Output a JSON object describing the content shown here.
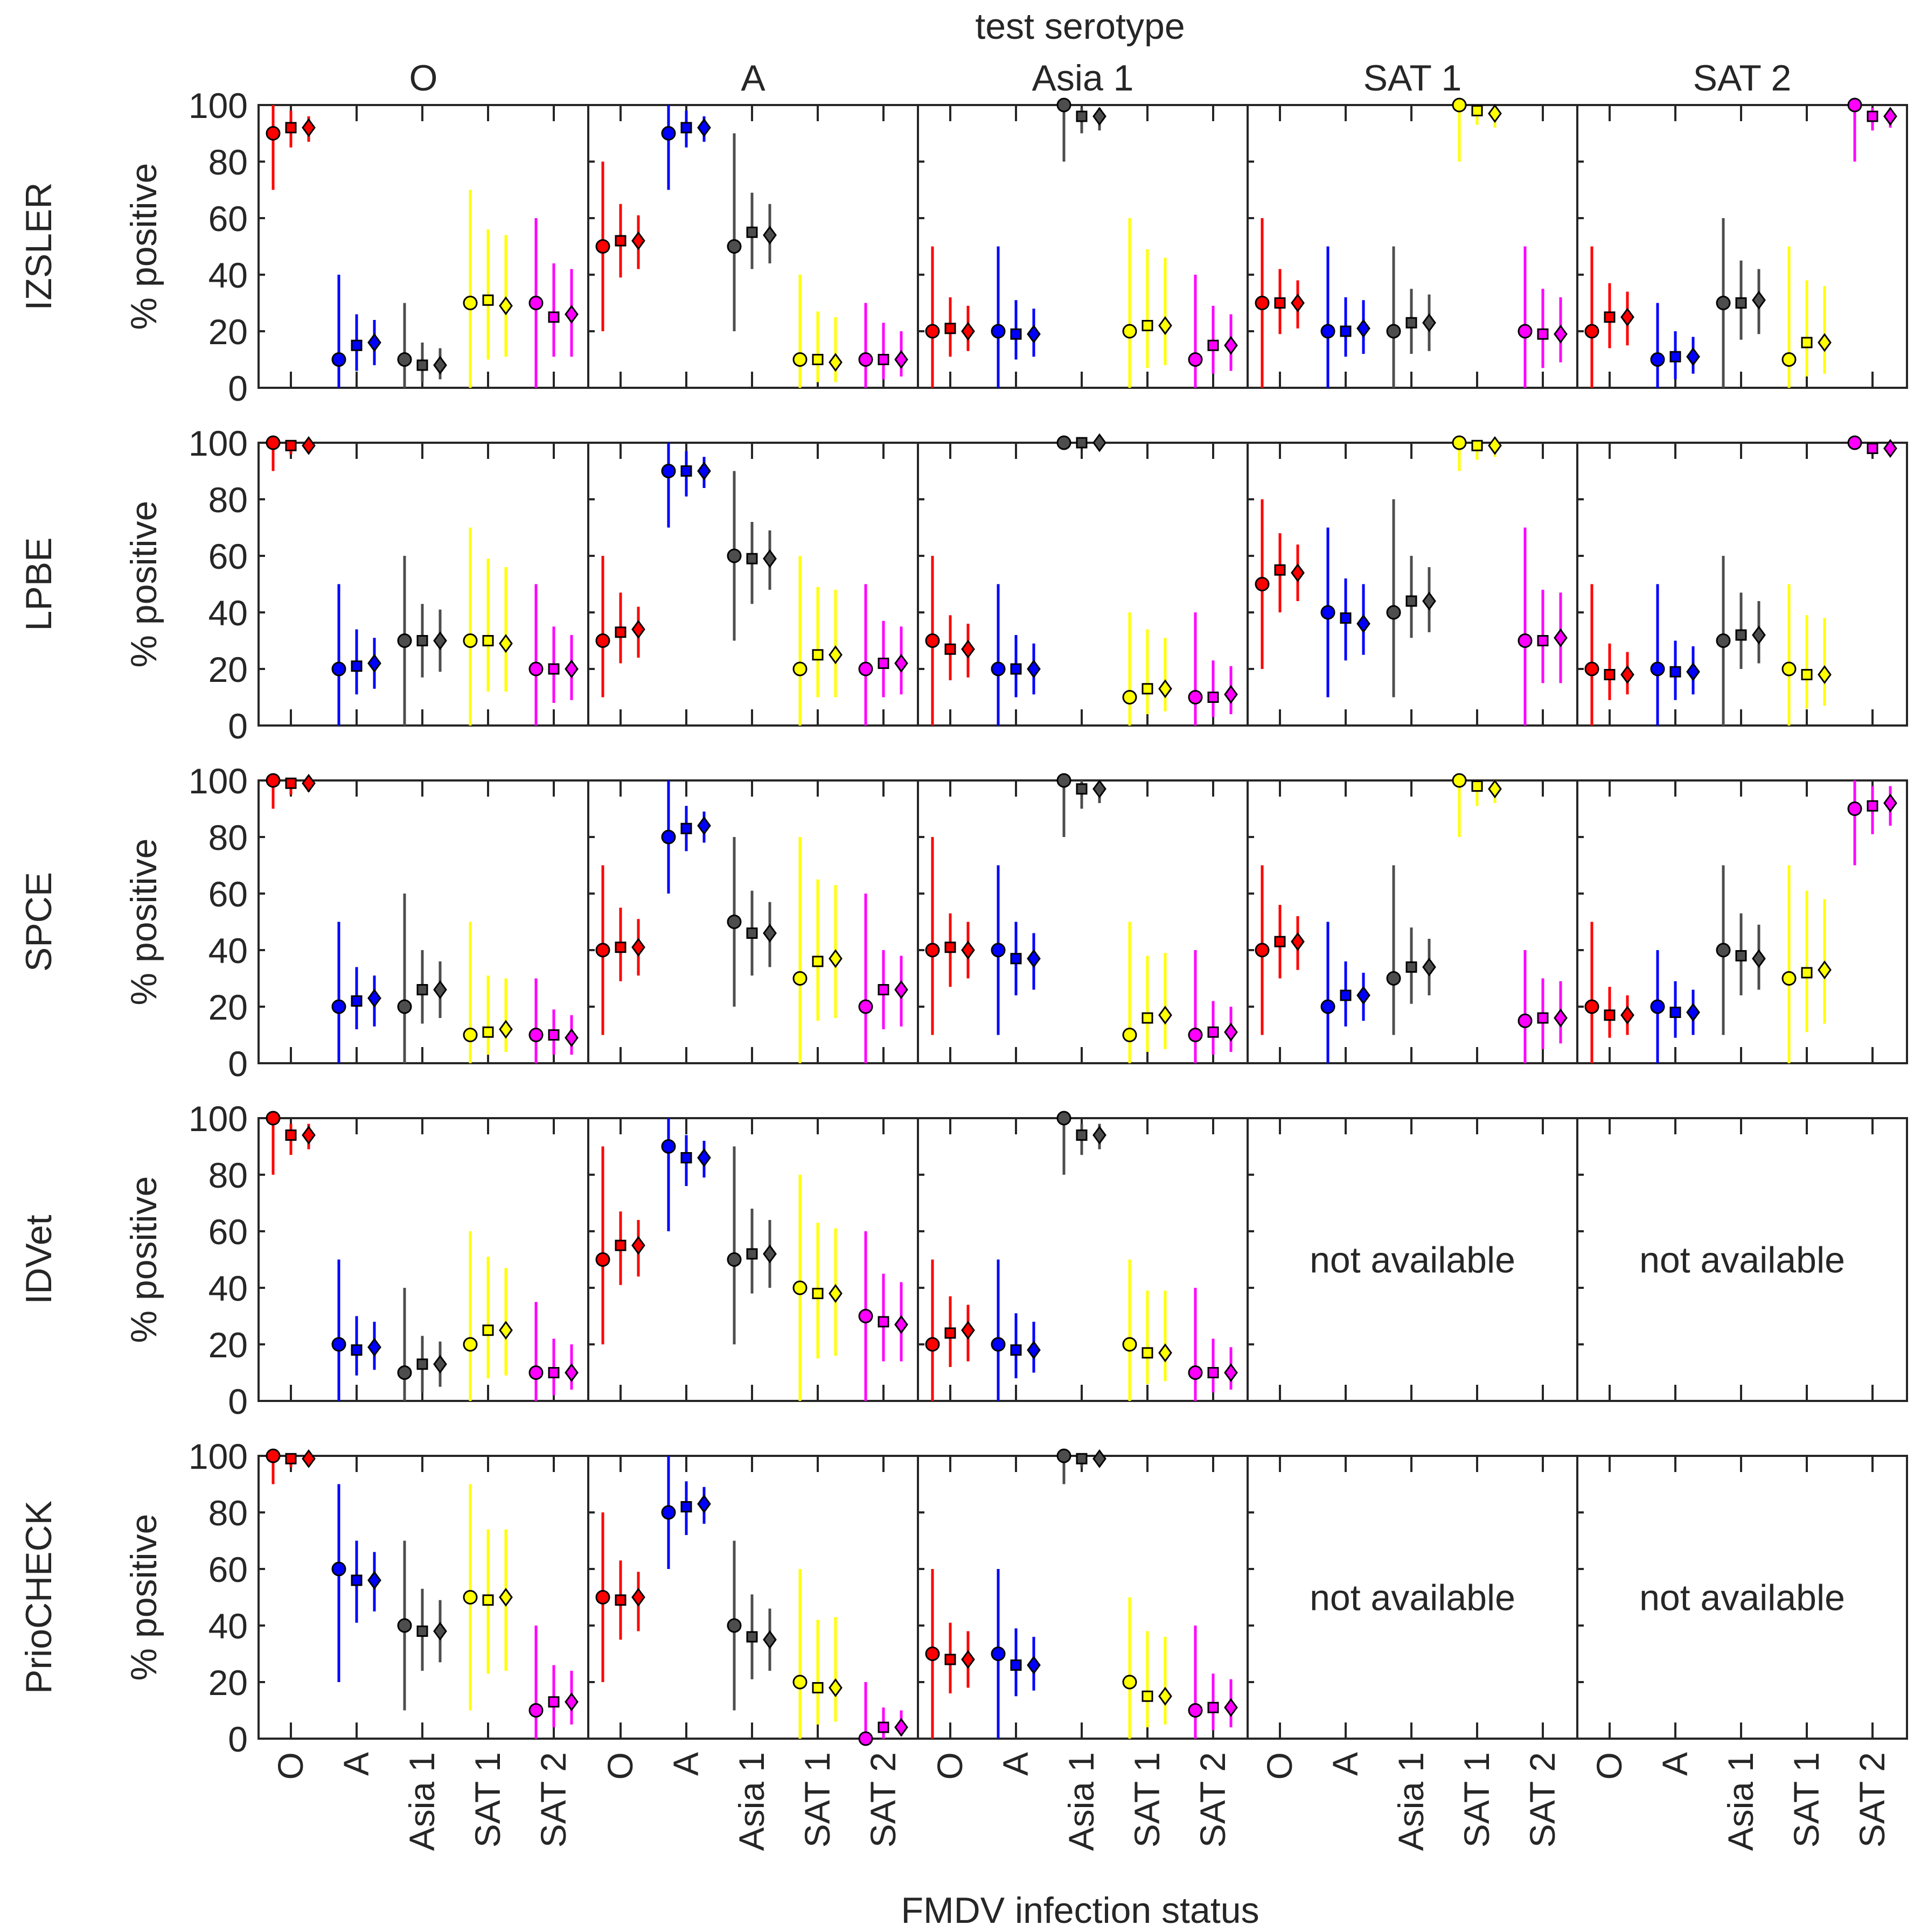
{
  "chart_data": {
    "type": "scatter",
    "title": "test serotype",
    "xlabel": "FMDV infection status",
    "ylabel": "% positive",
    "ylim": [
      0,
      100
    ],
    "yticks": [
      0,
      20,
      40,
      60,
      80,
      100
    ],
    "categories": [
      "O",
      "A",
      "Asia 1",
      "SAT 1",
      "SAT 2"
    ],
    "column_titles": [
      "O",
      "A",
      "Asia 1",
      "SAT 1",
      "SAT 2"
    ],
    "row_titles": [
      "IZSLER",
      "LPBE",
      "SPCE",
      "IDVet",
      "PrioCHECK"
    ],
    "not_available_text": "not available",
    "colors": {
      "O": "#ff0000",
      "A": "#0000ff",
      "Asia 1": "#4d4d4d",
      "SAT 1": "#ffff00",
      "SAT 2": "#ff00ff"
    },
    "markers": [
      "circle",
      "square",
      "diamond"
    ],
    "panels": [
      [
        [
          [
            90,
            70,
            100,
            92,
            85,
            98,
            92,
            87,
            96
          ],
          [
            10,
            0,
            40,
            15,
            6,
            26,
            16,
            8,
            24
          ],
          [
            10,
            0,
            30,
            8,
            2,
            16,
            8,
            3,
            14
          ],
          [
            30,
            0,
            70,
            31,
            10,
            56,
            29,
            11,
            54
          ],
          [
            30,
            0,
            60,
            25,
            11,
            44,
            26,
            11,
            42
          ]
        ],
        [
          [
            50,
            20,
            80,
            52,
            39,
            65,
            52,
            42,
            61
          ],
          [
            90,
            70,
            100,
            92,
            85,
            98,
            92,
            87,
            96
          ],
          [
            50,
            20,
            90,
            55,
            42,
            69,
            54,
            44,
            65
          ],
          [
            10,
            0,
            40,
            10,
            2,
            27,
            9,
            2,
            25
          ],
          [
            10,
            0,
            30,
            10,
            3,
            23,
            10,
            4,
            20
          ]
        ],
        [
          [
            20,
            0,
            50,
            21,
            11,
            32,
            20,
            13,
            29
          ],
          [
            20,
            0,
            50,
            19,
            10,
            31,
            19,
            11,
            28
          ],
          [
            100,
            80,
            100,
            96,
            90,
            99,
            96,
            91,
            99
          ],
          [
            20,
            0,
            60,
            22,
            7,
            49,
            22,
            8,
            46
          ],
          [
            10,
            0,
            40,
            15,
            5,
            29,
            15,
            6,
            26
          ]
        ],
        [
          [
            30,
            0,
            60,
            30,
            19,
            42,
            30,
            21,
            38
          ],
          [
            20,
            0,
            50,
            20,
            11,
            32,
            21,
            12,
            31
          ],
          [
            20,
            0,
            50,
            23,
            12,
            35,
            23,
            13,
            33
          ],
          [
            100,
            80,
            100,
            98,
            93,
            100,
            97,
            92,
            99
          ],
          [
            20,
            0,
            50,
            19,
            7,
            35,
            19,
            9,
            32
          ]
        ],
        [
          [
            20,
            0,
            50,
            25,
            14,
            37,
            25,
            15,
            34
          ],
          [
            10,
            0,
            30,
            11,
            3,
            20,
            11,
            5,
            18
          ],
          [
            30,
            0,
            60,
            30,
            17,
            45,
            31,
            19,
            42
          ],
          [
            10,
            0,
            50,
            16,
            4,
            38,
            16,
            5,
            36
          ],
          [
            100,
            80,
            100,
            96,
            91,
            99,
            96,
            92,
            99
          ]
        ]
      ],
      [
        [
          [
            100,
            90,
            100,
            99,
            96,
            100,
            99,
            97,
            100
          ],
          [
            20,
            0,
            50,
            21,
            11,
            34,
            22,
            13,
            31
          ],
          [
            30,
            0,
            60,
            30,
            17,
            43,
            30,
            19,
            41
          ],
          [
            30,
            0,
            70,
            30,
            12,
            59,
            29,
            12,
            56
          ],
          [
            20,
            0,
            50,
            20,
            8,
            35,
            20,
            9,
            32
          ]
        ],
        [
          [
            30,
            10,
            60,
            33,
            22,
            47,
            34,
            24,
            42
          ],
          [
            90,
            70,
            100,
            90,
            81,
            97,
            90,
            84,
            95
          ],
          [
            60,
            30,
            90,
            59,
            43,
            72,
            59,
            48,
            69
          ],
          [
            20,
            0,
            60,
            25,
            10,
            49,
            25,
            10,
            48
          ],
          [
            20,
            0,
            50,
            22,
            10,
            37,
            22,
            11,
            35
          ]
        ],
        [
          [
            30,
            0,
            60,
            27,
            16,
            39,
            27,
            17,
            36
          ],
          [
            20,
            0,
            50,
            20,
            10,
            32,
            20,
            11,
            29
          ],
          [
            100,
            100,
            100,
            100,
            98,
            100,
            100,
            99,
            100
          ],
          [
            10,
            0,
            40,
            13,
            4,
            34,
            13,
            5,
            31
          ],
          [
            10,
            0,
            40,
            10,
            3,
            23,
            11,
            4,
            21
          ]
        ],
        [
          [
            50,
            20,
            80,
            55,
            40,
            68,
            54,
            44,
            64
          ],
          [
            40,
            10,
            70,
            38,
            23,
            52,
            36,
            25,
            50
          ],
          [
            40,
            10,
            80,
            44,
            31,
            60,
            44,
            33,
            56
          ],
          [
            100,
            90,
            100,
            99,
            94,
            100,
            99,
            95,
            100
          ],
          [
            30,
            0,
            70,
            30,
            15,
            48,
            31,
            15,
            47
          ]
        ],
        [
          [
            20,
            0,
            50,
            18,
            9,
            29,
            18,
            11,
            26
          ],
          [
            20,
            0,
            50,
            19,
            9,
            30,
            19,
            11,
            28
          ],
          [
            30,
            0,
            60,
            32,
            20,
            47,
            32,
            22,
            44
          ],
          [
            20,
            0,
            50,
            18,
            6,
            39,
            18,
            7,
            38
          ],
          [
            100,
            100,
            100,
            98,
            96,
            100,
            98,
            96,
            100
          ]
        ]
      ],
      [
        [
          [
            100,
            90,
            100,
            99,
            95,
            100,
            99,
            96,
            100
          ],
          [
            20,
            0,
            50,
            22,
            12,
            34,
            23,
            13,
            31
          ],
          [
            20,
            0,
            60,
            26,
            14,
            40,
            26,
            16,
            36
          ],
          [
            10,
            0,
            50,
            11,
            3,
            31,
            12,
            4,
            30
          ],
          [
            10,
            0,
            30,
            10,
            3,
            19,
            9,
            3,
            17
          ]
        ],
        [
          [
            40,
            10,
            70,
            41,
            29,
            55,
            41,
            31,
            51
          ],
          [
            80,
            60,
            100,
            83,
            75,
            91,
            84,
            78,
            89
          ],
          [
            50,
            20,
            80,
            46,
            31,
            61,
            46,
            34,
            57
          ],
          [
            30,
            0,
            80,
            36,
            15,
            65,
            37,
            16,
            63
          ],
          [
            20,
            0,
            60,
            26,
            12,
            40,
            26,
            13,
            38
          ]
        ],
        [
          [
            40,
            10,
            80,
            41,
            27,
            53,
            40,
            30,
            50
          ],
          [
            40,
            10,
            70,
            37,
            24,
            50,
            37,
            26,
            46
          ],
          [
            100,
            80,
            100,
            97,
            90,
            100,
            97,
            92,
            100
          ],
          [
            10,
            0,
            50,
            16,
            4,
            38,
            17,
            5,
            39
          ],
          [
            10,
            0,
            40,
            11,
            3,
            22,
            11,
            4,
            20
          ]
        ],
        [
          [
            40,
            10,
            70,
            43,
            30,
            56,
            43,
            33,
            52
          ],
          [
            20,
            0,
            50,
            24,
            13,
            36,
            24,
            15,
            32
          ],
          [
            30,
            10,
            70,
            34,
            21,
            48,
            34,
            24,
            44
          ],
          [
            100,
            80,
            100,
            98,
            91,
            100,
            97,
            92,
            100
          ],
          [
            15,
            0,
            40,
            16,
            5,
            30,
            16,
            7,
            29
          ]
        ],
        [
          [
            20,
            0,
            50,
            17,
            9,
            27,
            17,
            10,
            24
          ],
          [
            20,
            0,
            40,
            18,
            9,
            29,
            18,
            10,
            26
          ],
          [
            40,
            10,
            70,
            38,
            24,
            53,
            37,
            26,
            49
          ],
          [
            30,
            0,
            70,
            32,
            11,
            61,
            33,
            14,
            58
          ],
          [
            90,
            70,
            100,
            91,
            81,
            98,
            92,
            84,
            98
          ]
        ]
      ],
      [
        [
          [
            100,
            80,
            100,
            94,
            87,
            98,
            94,
            89,
            98
          ],
          [
            20,
            0,
            50,
            18,
            9,
            30,
            19,
            11,
            28
          ],
          [
            10,
            0,
            40,
            13,
            3,
            23,
            13,
            5,
            21
          ],
          [
            20,
            0,
            60,
            25,
            8,
            51,
            25,
            9,
            47
          ],
          [
            10,
            0,
            35,
            10,
            2,
            22,
            10,
            4,
            20
          ]
        ],
        [
          [
            50,
            20,
            90,
            55,
            41,
            67,
            55,
            44,
            64
          ],
          [
            90,
            60,
            100,
            86,
            76,
            94,
            86,
            79,
            92
          ],
          [
            50,
            20,
            90,
            52,
            38,
            68,
            52,
            40,
            64
          ],
          [
            40,
            0,
            80,
            38,
            15,
            63,
            38,
            16,
            61
          ],
          [
            30,
            0,
            60,
            28,
            14,
            45,
            27,
            14,
            42
          ]
        ],
        [
          [
            20,
            0,
            50,
            24,
            12,
            37,
            25,
            14,
            34
          ],
          [
            20,
            0,
            50,
            18,
            8,
            31,
            18,
            10,
            28
          ],
          [
            100,
            80,
            100,
            94,
            87,
            98,
            94,
            89,
            98
          ],
          [
            20,
            0,
            50,
            17,
            6,
            39,
            17,
            7,
            39
          ],
          [
            10,
            0,
            40,
            10,
            3,
            22,
            10,
            4,
            19
          ]
        ],
        null,
        null
      ],
      [
        [
          [
            100,
            90,
            100,
            99,
            96,
            100,
            99,
            97,
            100
          ],
          [
            60,
            20,
            90,
            56,
            41,
            70,
            56,
            45,
            66
          ],
          [
            40,
            10,
            70,
            38,
            24,
            53,
            38,
            27,
            49
          ],
          [
            50,
            10,
            90,
            49,
            23,
            74,
            50,
            24,
            74
          ],
          [
            10,
            0,
            40,
            13,
            4,
            26,
            13,
            5,
            24
          ]
        ],
        [
          [
            50,
            20,
            80,
            49,
            35,
            63,
            50,
            38,
            59
          ],
          [
            80,
            60,
            100,
            82,
            72,
            91,
            83,
            76,
            89
          ],
          [
            40,
            10,
            70,
            36,
            21,
            51,
            35,
            24,
            46
          ],
          [
            20,
            0,
            60,
            18,
            5,
            42,
            18,
            6,
            43
          ],
          [
            0,
            0,
            20,
            4,
            0,
            11,
            4,
            1,
            10
          ]
        ],
        [
          [
            30,
            0,
            60,
            28,
            16,
            41,
            28,
            18,
            38
          ],
          [
            30,
            0,
            60,
            26,
            15,
            39,
            26,
            17,
            36
          ],
          [
            100,
            90,
            100,
            99,
            96,
            100,
            99,
            97,
            100
          ],
          [
            20,
            0,
            50,
            15,
            4,
            38,
            15,
            5,
            36
          ],
          [
            10,
            0,
            40,
            11,
            3,
            23,
            11,
            4,
            21
          ]
        ],
        null,
        null
      ]
    ]
  }
}
